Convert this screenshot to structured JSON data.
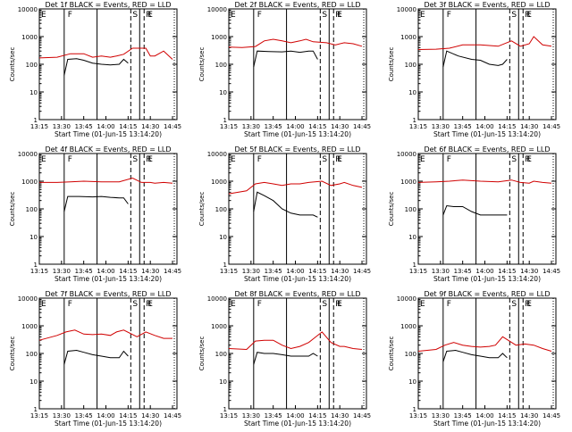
{
  "figure": {
    "xaxis_title": "Start Time (01-Jun-15 13:14:20)",
    "yaxis_title": "Counts/sec",
    "x_ticks": [
      "13:15",
      "13:30",
      "13:45",
      "14:00",
      "14:15",
      "14:30",
      "14:45"
    ],
    "y_ticks": [
      "1",
      "10",
      "100",
      "1000",
      "10000"
    ],
    "colors": {
      "events": "#000000",
      "lld": "#d00000"
    }
  },
  "chart_data": [
    {
      "type": "line",
      "title": "Det 1f BLACK = Events, RED = LLD",
      "markers": [
        "E",
        "F",
        "S",
        "R",
        "E"
      ],
      "series": [
        {
          "name": "Events",
          "color": "#000000",
          "x": [
            13.53,
            13.57,
            13.67,
            13.75,
            13.85,
            13.95,
            14.05,
            14.15,
            14.2,
            14.25
          ],
          "y": [
            40,
            150,
            160,
            140,
            110,
            100,
            95,
            100,
            150,
            110
          ]
        },
        {
          "name": "LLD",
          "color": "#d00000",
          "x": [
            13.25,
            13.45,
            13.6,
            13.75,
            13.85,
            13.95,
            14.05,
            14.12,
            14.2,
            14.3,
            14.45,
            14.5,
            14.55,
            14.65,
            14.75
          ],
          "y": [
            170,
            180,
            240,
            240,
            180,
            200,
            180,
            200,
            230,
            380,
            380,
            200,
            200,
            300,
            150
          ]
        }
      ]
    },
    {
      "type": "line",
      "title": "Det 2f BLACK = Events, RED = LLD",
      "markers": [
        "E",
        "F",
        "S",
        "R",
        "E"
      ],
      "series": [
        {
          "name": "Events",
          "color": "#000000",
          "x": [
            13.53,
            13.57,
            13.7,
            13.85,
            13.95,
            14.05,
            14.15,
            14.2,
            14.25
          ],
          "y": [
            80,
            300,
            290,
            280,
            300,
            270,
            300,
            300,
            150
          ]
        },
        {
          "name": "LLD",
          "color": "#d00000",
          "x": [
            13.25,
            13.4,
            13.55,
            13.65,
            13.75,
            13.85,
            13.95,
            14.05,
            14.12,
            14.2,
            14.35,
            14.45,
            14.55,
            14.65,
            14.75
          ],
          "y": [
            420,
            400,
            440,
            700,
            800,
            700,
            600,
            700,
            800,
            650,
            600,
            500,
            600,
            550,
            450
          ]
        }
      ]
    },
    {
      "type": "line",
      "title": "Det 3f BLACK = Events, RED = LLD",
      "markers": [
        "E",
        "F",
        "S",
        "R",
        "E"
      ],
      "series": [
        {
          "name": "Events",
          "color": "#000000",
          "x": [
            13.53,
            13.57,
            13.7,
            13.85,
            13.95,
            14.05,
            14.15,
            14.2,
            14.25
          ],
          "y": [
            80,
            300,
            200,
            150,
            140,
            100,
            90,
            100,
            150
          ]
        },
        {
          "name": "LLD",
          "color": "#d00000",
          "x": [
            13.25,
            13.45,
            13.6,
            13.75,
            13.95,
            14.15,
            14.3,
            14.4,
            14.5,
            14.55,
            14.65,
            14.75
          ],
          "y": [
            340,
            350,
            380,
            500,
            500,
            450,
            700,
            450,
            550,
            1000,
            500,
            450
          ]
        }
      ]
    },
    {
      "type": "line",
      "title": "Det 4f BLACK = Events, RED = LLD",
      "markers": [
        "E",
        "F",
        "S",
        "R",
        "E"
      ],
      "series": [
        {
          "name": "Events",
          "color": "#000000",
          "x": [
            13.53,
            13.57,
            13.7,
            13.85,
            13.95,
            14.05,
            14.15,
            14.2,
            14.25
          ],
          "y": [
            80,
            280,
            280,
            270,
            280,
            260,
            250,
            250,
            150
          ]
        },
        {
          "name": "LLD",
          "color": "#d00000",
          "x": [
            13.25,
            13.45,
            13.6,
            13.75,
            13.95,
            14.15,
            14.3,
            14.4,
            14.5,
            14.55,
            14.65,
            14.75
          ],
          "y": [
            900,
            900,
            950,
            1000,
            950,
            950,
            1300,
            900,
            900,
            850,
            900,
            850
          ]
        }
      ]
    },
    {
      "type": "line",
      "title": "Det 5f BLACK = Events, RED = LLD",
      "markers": [
        "E",
        "F",
        "S",
        "R",
        "E"
      ],
      "series": [
        {
          "name": "Events",
          "color": "#000000",
          "x": [
            13.53,
            13.57,
            13.65,
            13.75,
            13.85,
            13.95,
            14.05,
            14.15,
            14.2,
            14.25
          ],
          "y": [
            80,
            400,
            300,
            200,
            100,
            70,
            60,
            60,
            60,
            50
          ]
        },
        {
          "name": "LLD",
          "color": "#d00000",
          "x": [
            13.25,
            13.45,
            13.55,
            13.65,
            13.75,
            13.85,
            13.95,
            14.05,
            14.15,
            14.3,
            14.4,
            14.5,
            14.55,
            14.65,
            14.75
          ],
          "y": [
            350,
            450,
            800,
            900,
            800,
            700,
            800,
            800,
            900,
            1000,
            700,
            800,
            900,
            700,
            600
          ]
        }
      ]
    },
    {
      "type": "line",
      "title": "Det 6f BLACK = Events, RED = LLD",
      "markers": [
        "E",
        "F",
        "S",
        "R",
        "E"
      ],
      "series": [
        {
          "name": "Events",
          "color": "#000000",
          "x": [
            13.53,
            13.57,
            13.65,
            13.75,
            13.85,
            13.95,
            14.05,
            14.15,
            14.2,
            14.25
          ],
          "y": [
            60,
            130,
            120,
            120,
            80,
            60,
            60,
            60,
            60,
            60
          ]
        },
        {
          "name": "LLD",
          "color": "#d00000",
          "x": [
            13.25,
            13.45,
            13.6,
            13.75,
            13.95,
            14.15,
            14.3,
            14.4,
            14.5,
            14.55,
            14.65,
            14.75
          ],
          "y": [
            900,
            950,
            1000,
            1100,
            1000,
            950,
            1100,
            900,
            850,
            1000,
            900,
            850
          ]
        }
      ]
    },
    {
      "type": "line",
      "title": "Det 7f BLACK = Events, RED = LLD",
      "markers": [
        "E",
        "F",
        "S",
        "R",
        "E"
      ],
      "series": [
        {
          "name": "Events",
          "color": "#000000",
          "x": [
            13.53,
            13.57,
            13.67,
            13.75,
            13.85,
            13.95,
            14.05,
            14.15,
            14.2,
            14.25
          ],
          "y": [
            40,
            120,
            130,
            110,
            90,
            80,
            70,
            70,
            120,
            80
          ]
        },
        {
          "name": "LLD",
          "color": "#d00000",
          "x": [
            13.25,
            13.45,
            13.55,
            13.65,
            13.75,
            13.85,
            13.95,
            14.05,
            14.12,
            14.2,
            14.35,
            14.45,
            14.55,
            14.65,
            14.75
          ],
          "y": [
            300,
            450,
            600,
            700,
            500,
            480,
            500,
            450,
            600,
            700,
            400,
            600,
            450,
            350,
            350
          ]
        }
      ]
    },
    {
      "type": "line",
      "title": "Det 8f BLACK = Events, RED = LLD",
      "markers": [
        "E",
        "F",
        "S",
        "R",
        "E"
      ],
      "series": [
        {
          "name": "Events",
          "color": "#000000",
          "x": [
            13.53,
            13.57,
            13.65,
            13.75,
            13.85,
            13.95,
            14.05,
            14.15,
            14.2,
            14.25
          ],
          "y": [
            40,
            110,
            100,
            100,
            90,
            80,
            80,
            80,
            100,
            80
          ]
        },
        {
          "name": "LLD",
          "color": "#d00000",
          "x": [
            13.25,
            13.45,
            13.55,
            13.65,
            13.75,
            13.85,
            13.95,
            14.05,
            14.15,
            14.3,
            14.4,
            14.5,
            14.55,
            14.65,
            14.75
          ],
          "y": [
            150,
            140,
            280,
            300,
            300,
            200,
            150,
            180,
            250,
            600,
            250,
            180,
            180,
            150,
            140
          ]
        }
      ]
    },
    {
      "type": "line",
      "title": "Det 9f BLACK = Events, RED = LLD",
      "markers": [
        "E",
        "F",
        "S",
        "R",
        "E"
      ],
      "series": [
        {
          "name": "Events",
          "color": "#000000",
          "x": [
            13.53,
            13.57,
            13.67,
            13.75,
            13.85,
            13.95,
            14.05,
            14.15,
            14.2,
            14.25
          ],
          "y": [
            50,
            120,
            130,
            110,
            90,
            80,
            70,
            70,
            100,
            70
          ]
        },
        {
          "name": "LLD",
          "color": "#d00000",
          "x": [
            13.25,
            13.45,
            13.55,
            13.65,
            13.75,
            13.85,
            13.95,
            14.05,
            14.12,
            14.2,
            14.35,
            14.45,
            14.55,
            14.65,
            14.75
          ],
          "y": [
            120,
            140,
            200,
            250,
            200,
            180,
            170,
            180,
            200,
            400,
            200,
            220,
            200,
            150,
            120
          ]
        }
      ]
    }
  ]
}
